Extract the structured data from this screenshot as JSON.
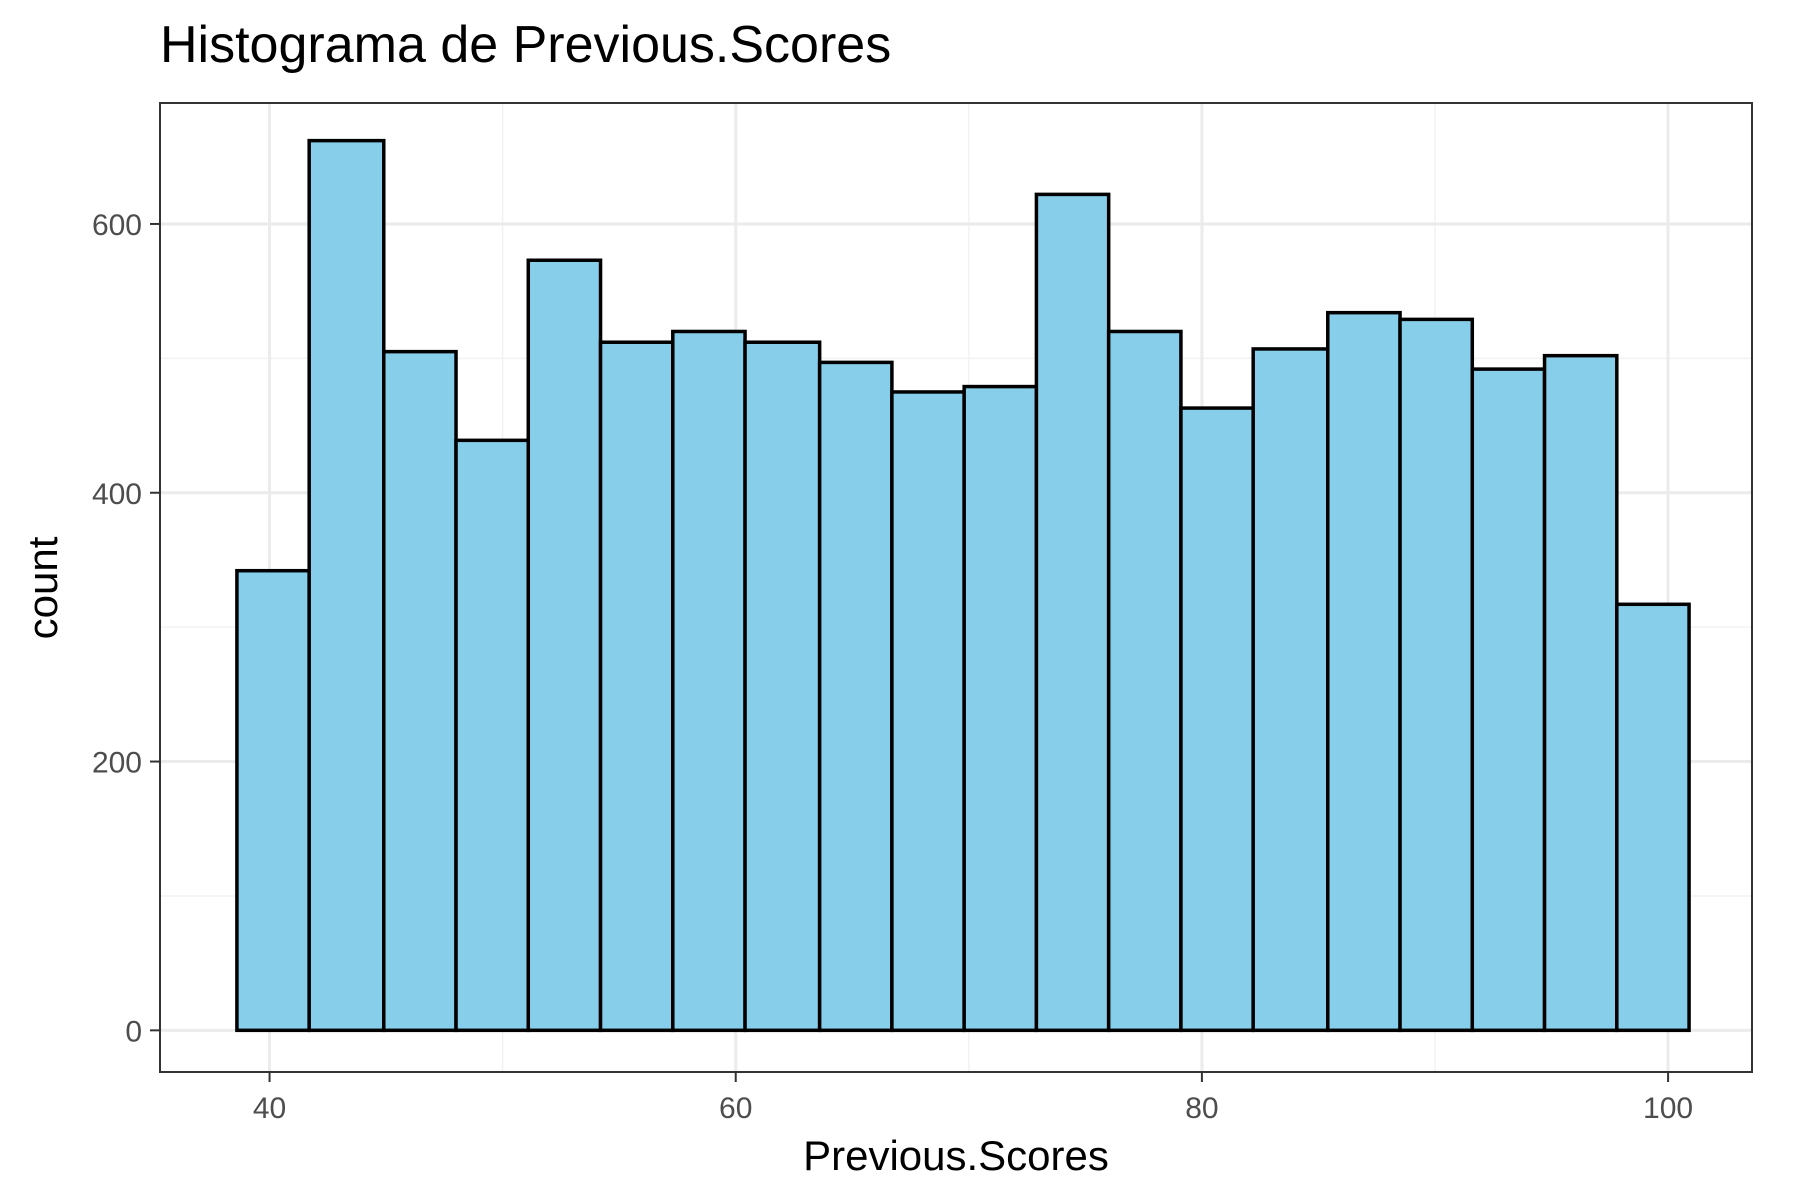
{
  "chart_data": {
    "type": "bar",
    "title": "Histograma de Previous.Scores",
    "xlabel": "Previous.Scores",
    "ylabel": "count",
    "bar_color": "#87CEEB",
    "border_color": "#000000",
    "xlim": [
      35.3,
      103.6
    ],
    "ylim": [
      -31,
      690
    ],
    "x_ticks": [
      40,
      60,
      80,
      100
    ],
    "y_ticks": [
      0,
      200,
      400,
      600
    ],
    "x_minor": [
      50,
      70,
      90
    ],
    "y_minor": [
      100,
      300,
      500
    ],
    "grid": true,
    "bins": [
      {
        "x0": 38.6,
        "x1": 41.7,
        "count": 342
      },
      {
        "x0": 41.7,
        "x1": 44.9,
        "count": 662
      },
      {
        "x0": 44.9,
        "x1": 48.0,
        "count": 505
      },
      {
        "x0": 48.0,
        "x1": 51.1,
        "count": 439
      },
      {
        "x0": 51.1,
        "x1": 54.2,
        "count": 573
      },
      {
        "x0": 54.2,
        "x1": 57.3,
        "count": 512
      },
      {
        "x0": 57.3,
        "x1": 60.4,
        "count": 520
      },
      {
        "x0": 60.4,
        "x1": 63.6,
        "count": 512
      },
      {
        "x0": 63.6,
        "x1": 66.7,
        "count": 497
      },
      {
        "x0": 66.7,
        "x1": 69.8,
        "count": 475
      },
      {
        "x0": 69.8,
        "x1": 72.9,
        "count": 479
      },
      {
        "x0": 72.9,
        "x1": 76.0,
        "count": 622
      },
      {
        "x0": 76.0,
        "x1": 79.1,
        "count": 520
      },
      {
        "x0": 79.1,
        "x1": 82.2,
        "count": 463
      },
      {
        "x0": 82.2,
        "x1": 85.4,
        "count": 507
      },
      {
        "x0": 85.4,
        "x1": 88.5,
        "count": 534
      },
      {
        "x0": 88.5,
        "x1": 91.6,
        "count": 529
      },
      {
        "x0": 91.6,
        "x1": 94.7,
        "count": 492
      },
      {
        "x0": 94.7,
        "x1": 97.8,
        "count": 502
      },
      {
        "x0": 97.8,
        "x1": 100.9,
        "count": 317
      }
    ]
  }
}
